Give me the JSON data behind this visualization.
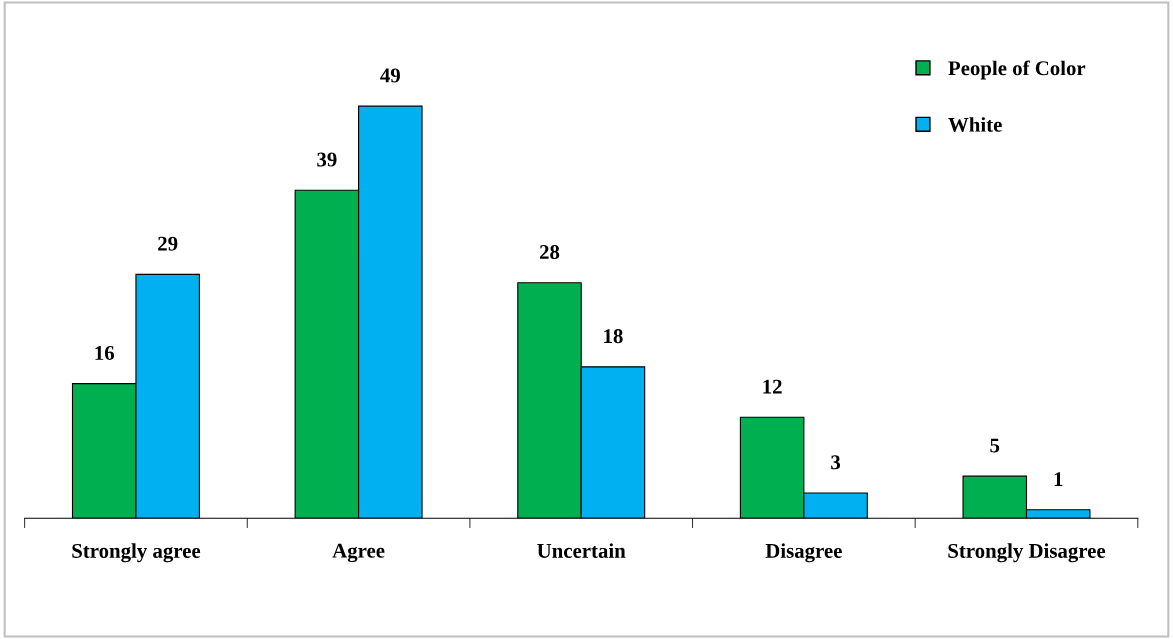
{
  "chart_data": {
    "type": "bar",
    "categories": [
      "Strongly agree",
      "Agree",
      "Uncertain",
      "Disagree",
      "Strongly Disagree"
    ],
    "series": [
      {
        "name": "People of Color",
        "color": "#00b050",
        "values": [
          16,
          39,
          28,
          12,
          5
        ]
      },
      {
        "name": "White",
        "color": "#00b0f0",
        "values": [
          29,
          49,
          18,
          3,
          1
        ]
      }
    ],
    "tick_labels": "x",
    "data_labels": true,
    "legend": "top right",
    "grid": false
  }
}
